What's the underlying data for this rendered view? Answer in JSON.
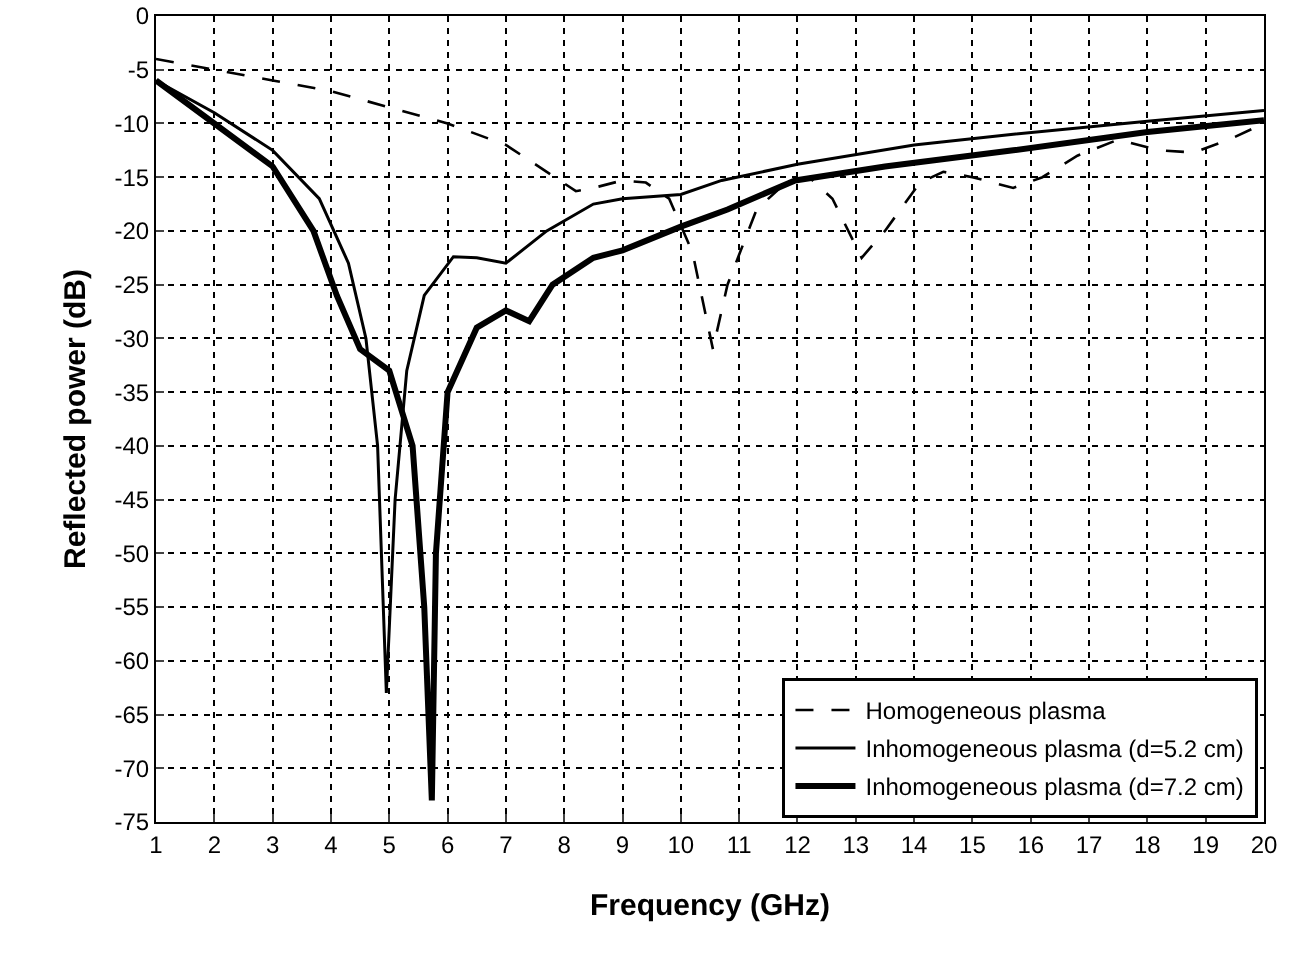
{
  "chart_data": {
    "type": "line",
    "xlabel": "Frequency (GHz)",
    "ylabel": "Reflected power (dB)",
    "xlim": [
      1,
      20
    ],
    "xticks": [
      1,
      2,
      3,
      4,
      5,
      6,
      7,
      8,
      9,
      10,
      11,
      12,
      13,
      14,
      15,
      16,
      17,
      18,
      19,
      20
    ],
    "ylim": [
      -75,
      0
    ],
    "yticks": [
      0,
      -5,
      -10,
      -15,
      -20,
      -25,
      -30,
      -35,
      -40,
      -45,
      -50,
      -55,
      -60,
      -65,
      -70,
      -75
    ],
    "grid": true,
    "legend": "bottom right",
    "marker": "none",
    "series": [
      {
        "name": "Homogeneous plasma",
        "color": "#000000",
        "line_style": "dashed",
        "x": [
          1,
          2,
          3,
          4,
          5,
          6,
          7,
          7.7,
          8.2,
          8.5,
          9,
          9.4,
          9.8,
          10.2,
          10.55,
          10.8,
          11.3,
          11.8,
          12.2,
          12.6,
          13.1,
          13.5,
          14.1,
          14.5,
          15,
          15.7,
          16.2,
          16.8,
          17.5,
          18.2,
          18.8,
          19.4,
          20
        ],
        "values": [
          -4,
          -5,
          -6,
          -7,
          -8.5,
          -10,
          -12,
          -14.5,
          -16.3,
          -16,
          -15.3,
          -15.5,
          -17,
          -22,
          -31,
          -25,
          -18,
          -15.5,
          -15,
          -17,
          -22.5,
          -20,
          -15.5,
          -14.5,
          -15,
          -16,
          -15,
          -13,
          -11.5,
          -12.5,
          -12.7,
          -11.5,
          -10
        ]
      },
      {
        "name": "Inhomogeneous plasma (d=5.2 cm)",
        "color": "#000000",
        "line_style": "solid",
        "x": [
          1,
          2,
          3,
          3.8,
          4.3,
          4.6,
          4.8,
          4.95,
          5.1,
          5.3,
          5.6,
          6.1,
          6.5,
          7,
          7.7,
          8.5,
          9,
          10,
          10.7,
          12,
          14,
          15.7,
          18,
          20
        ],
        "values": [
          -6,
          -9,
          -12.5,
          -17,
          -23,
          -30,
          -40,
          -63,
          -45,
          -33,
          -26,
          -22.4,
          -22.5,
          -23,
          -20,
          -17.5,
          -17,
          -16.6,
          -15.3,
          -13.8,
          -12,
          -11,
          -9.8,
          -8.8
        ]
      },
      {
        "name": "Inhomogeneous plasma (d=7.2 cm)",
        "color": "#000000",
        "line_style": "solid",
        "x": [
          1,
          2,
          3,
          3.7,
          4.1,
          4.5,
          5,
          5.4,
          5.6,
          5.73,
          5.8,
          6,
          6.5,
          7,
          7.4,
          7.8,
          8.5,
          9,
          10,
          10.8,
          11.96,
          13.5,
          15.7,
          18,
          20
        ],
        "values": [
          -6,
          -10,
          -14,
          -20,
          -26,
          -31,
          -33,
          -40,
          -55,
          -73,
          -50,
          -35,
          -29,
          -27.4,
          -28.4,
          -25,
          -22.5,
          -21.8,
          -19.6,
          -18,
          -15.3,
          -14,
          -12.5,
          -10.8,
          -9.7
        ]
      }
    ]
  }
}
